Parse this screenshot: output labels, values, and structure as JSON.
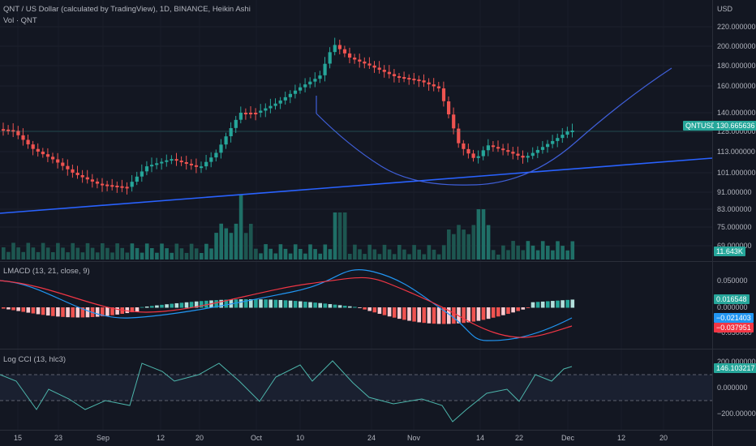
{
  "header": {
    "title": "QNT / US Dollar (calculated by TradingView), 1D, BINANCE, Heikin Ashi",
    "volume_label": "Vol · QNT",
    "currency": "USD"
  },
  "price_axis": {
    "ticks": [
      "220.000000",
      "200.000000",
      "180.000000",
      "160.000000",
      "140.000000",
      "125.000000",
      "113.000000",
      "101.000000",
      "91.000000",
      "83.000000",
      "75.000000",
      "69.000000"
    ],
    "symbol_tag": "QNTUSD",
    "last_price": "130.665636",
    "volume_value": "11.643K"
  },
  "lmacd": {
    "label": "LMACD (13, 21, close, 9)",
    "ticks": [
      "0.050000",
      "0.000000",
      "−0.050000"
    ],
    "histogram_value": "0.016548",
    "macd_value": "−0.021403",
    "signal_value": "−0.037951"
  },
  "cci": {
    "label": "Log CCI (13, hlc3)",
    "ticks": [
      "200.000000",
      "0.000000",
      "−200.000000"
    ],
    "value": "146.103217"
  },
  "time_axis": {
    "ticks": [
      "15",
      "23",
      "Sep",
      "12",
      "20",
      "Oct",
      "10",
      "24",
      "Nov",
      "14",
      "22",
      "Dec",
      "12",
      "20"
    ]
  },
  "colors": {
    "background": "#131722",
    "up": "#26a69a",
    "down": "#ef5350",
    "macd_line": "#2196f3",
    "signal_line": "#f23645",
    "trendline": "#2962ff",
    "arc": "#3f5fd9",
    "cci_line": "#4db6ac"
  }
}
